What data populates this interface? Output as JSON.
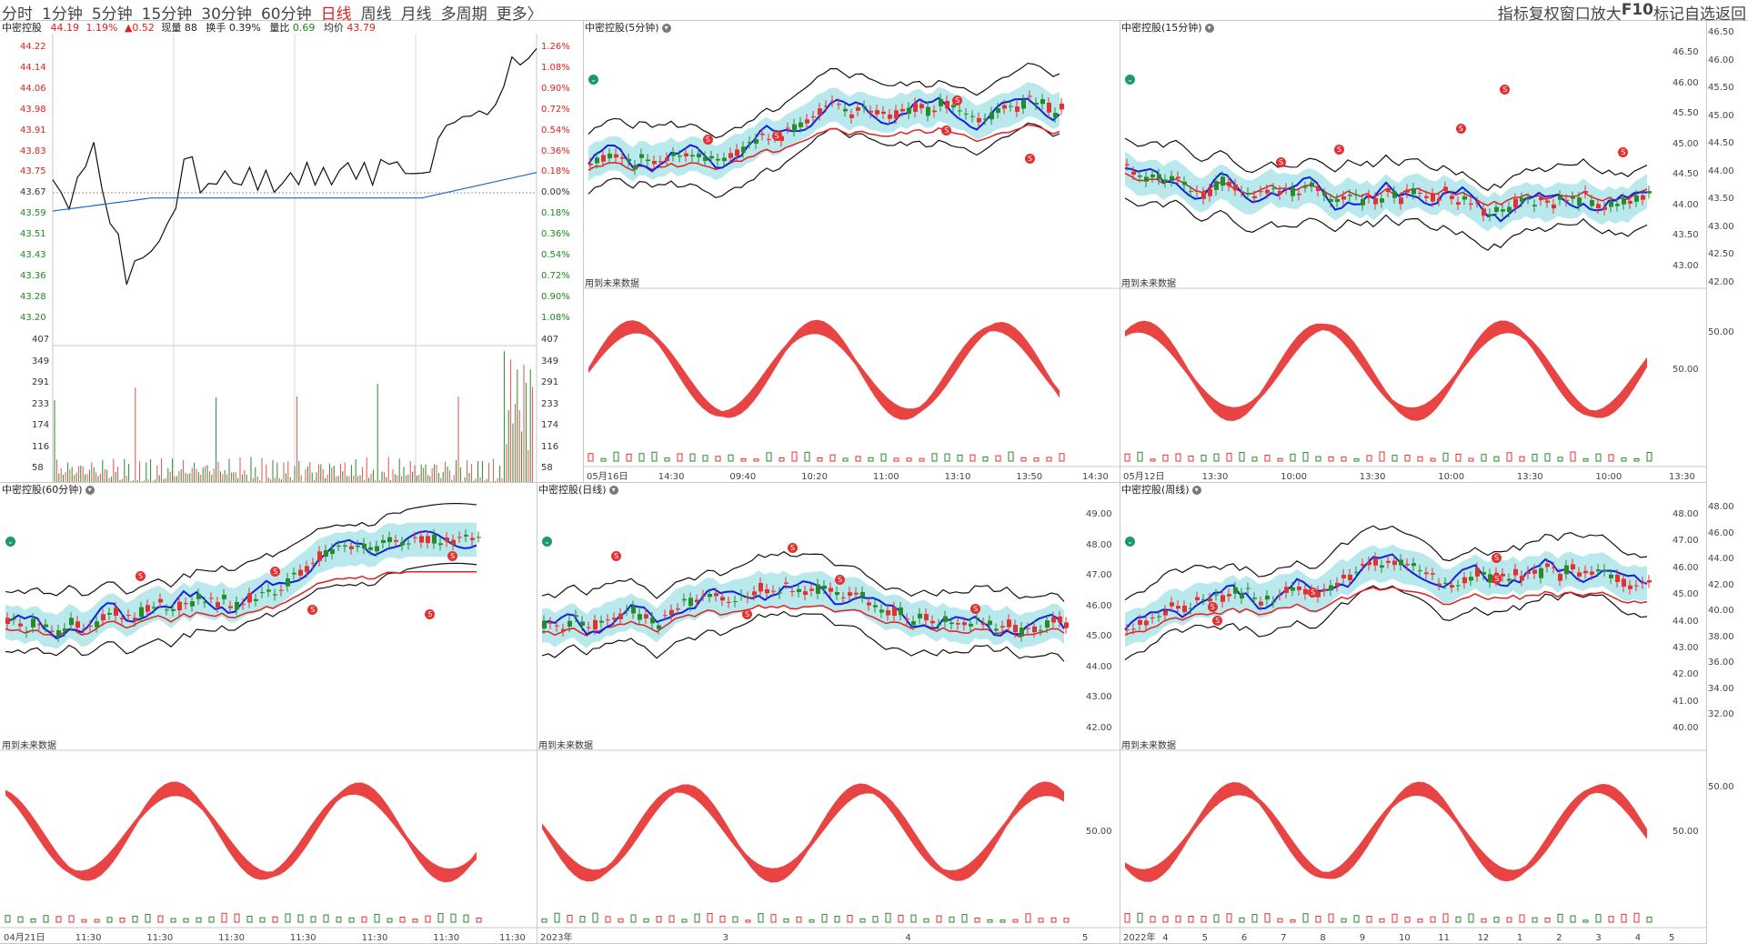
{
  "toolbar": {
    "periods": [
      "分时",
      "1分钟",
      "5分钟",
      "15分钟",
      "30分钟",
      "60分钟",
      "日线",
      "周线",
      "月线",
      "多周期",
      "更多〉"
    ],
    "active": "日线",
    "right": [
      "指标",
      "复权",
      "窗口放大",
      "F10",
      "标记",
      "自选",
      "返回"
    ]
  },
  "timeshare": {
    "name": "中密控股",
    "price": "44.19",
    "pct": "1.19%",
    "chg": "▲0.52",
    "vol_label": "现量",
    "vol": "88",
    "turnover_label": "换手",
    "turnover": "0.39%",
    "ratio_label": "量比",
    "ratio": "0.69",
    "avg_label": "均价",
    "avg": "43.79",
    "price_ticks": [
      "44.22",
      "44.14",
      "44.06",
      "43.98",
      "43.91",
      "43.83",
      "43.75",
      "43.67",
      "43.59",
      "43.51",
      "43.43",
      "43.36",
      "43.28",
      "43.20"
    ],
    "pct_ticks": [
      "1.26%",
      "1.08%",
      "0.90%",
      "0.72%",
      "0.54%",
      "0.36%",
      "0.18%",
      "0.00%",
      "0.18%",
      "0.36%",
      "0.54%",
      "0.72%",
      "0.90%",
      "1.08%"
    ],
    "vol_ticks": [
      "407",
      "349",
      "291",
      "233",
      "174",
      "116",
      "58"
    ],
    "price_series": [
      43.72,
      43.66,
      43.63,
      43.7,
      43.8,
      43.84,
      43.7,
      43.55,
      43.5,
      43.34,
      43.38,
      43.45,
      43.42,
      43.5,
      43.55,
      43.6,
      43.82,
      43.78,
      43.7,
      43.68,
      43.72,
      43.75,
      43.7,
      43.72,
      43.74,
      43.71,
      43.73,
      43.69,
      43.7,
      43.74,
      43.72,
      43.76,
      43.73,
      43.74,
      43.72,
      43.75,
      43.78,
      43.74,
      43.76,
      43.73,
      43.77,
      43.8,
      43.78,
      43.74,
      43.76,
      43.72,
      43.78,
      43.85,
      43.95,
      43.93,
      43.96,
      43.98,
      43.96,
      44.0,
      43.98,
      44.1,
      44.18,
      44.16,
      44.2,
      44.2
    ]
  },
  "panels": [
    {
      "title": "中密控股(5分钟)",
      "future": "用到未来数据",
      "ylabels": [],
      "sub_ylabels": [],
      "xlabels": [
        "05月16日",
        "14:30",
        "09:40",
        "10:20",
        "11:00",
        "13:10",
        "13:50",
        "14:30"
      ]
    },
    {
      "title": "中密控股(15分钟)",
      "future": "用到未来数据",
      "ylabels": [
        "46.50",
        "46.00",
        "45.50",
        "45.00",
        "44.50",
        "44.00",
        "43.50",
        "43.00"
      ],
      "sub_ylabels": [
        "50.00"
      ],
      "xlabels": [
        "05月12日",
        "13:30",
        "10:00",
        "13:30",
        "10:00",
        "13:30",
        "10:00",
        "13:30"
      ]
    },
    {
      "title": "中密控股(60分钟)",
      "future": "用到未来数据",
      "ylabels": [],
      "sub_ylabels": [],
      "xlabels": [
        "04月21日",
        "11:30",
        "11:30",
        "11:30",
        "11:30",
        "11:30",
        "11:30",
        "11:30"
      ]
    },
    {
      "title": "中密控股(日线)",
      "future": "用到未来数据",
      "ylabels": [
        "49.00",
        "48.00",
        "47.00",
        "46.00",
        "45.00",
        "44.00",
        "43.00",
        "42.00"
      ],
      "sub_ylabels": [
        "50.00"
      ],
      "xlabels": [
        "2023年",
        "3",
        "4",
        "5"
      ]
    },
    {
      "title": "中密控股(周线)",
      "future": "用到未来数据",
      "ylabels": [
        "48.00",
        "47.00",
        "46.00",
        "45.00",
        "44.00",
        "43.00",
        "42.00",
        "41.00",
        "40.00"
      ],
      "sub_ylabels": [
        "50.00"
      ],
      "xlabels": [
        "2022年",
        "4",
        "5",
        "6",
        "7",
        "8",
        "9",
        "10",
        "11",
        "12",
        "1",
        "2",
        "3",
        "4",
        "5"
      ]
    }
  ],
  "right_axis": {
    "ylabels": [
      "46.50",
      "46.00",
      "45.50",
      "45.00",
      "44.50",
      "44.00",
      "43.50",
      "43.00",
      "42.50",
      "42.00"
    ],
    "sub_ylabel": "50.00",
    "weekly_ylabels": [
      "48.00",
      "46.00",
      "44.00",
      "42.00",
      "40.00",
      "38.00",
      "36.00",
      "34.00",
      "32.00"
    ],
    "weekly_sub": "50.00"
  },
  "colors": {
    "up": "#e53030",
    "down": "#2a8a2a",
    "blue": "#1020e0",
    "grid": "#c8c8c8"
  }
}
